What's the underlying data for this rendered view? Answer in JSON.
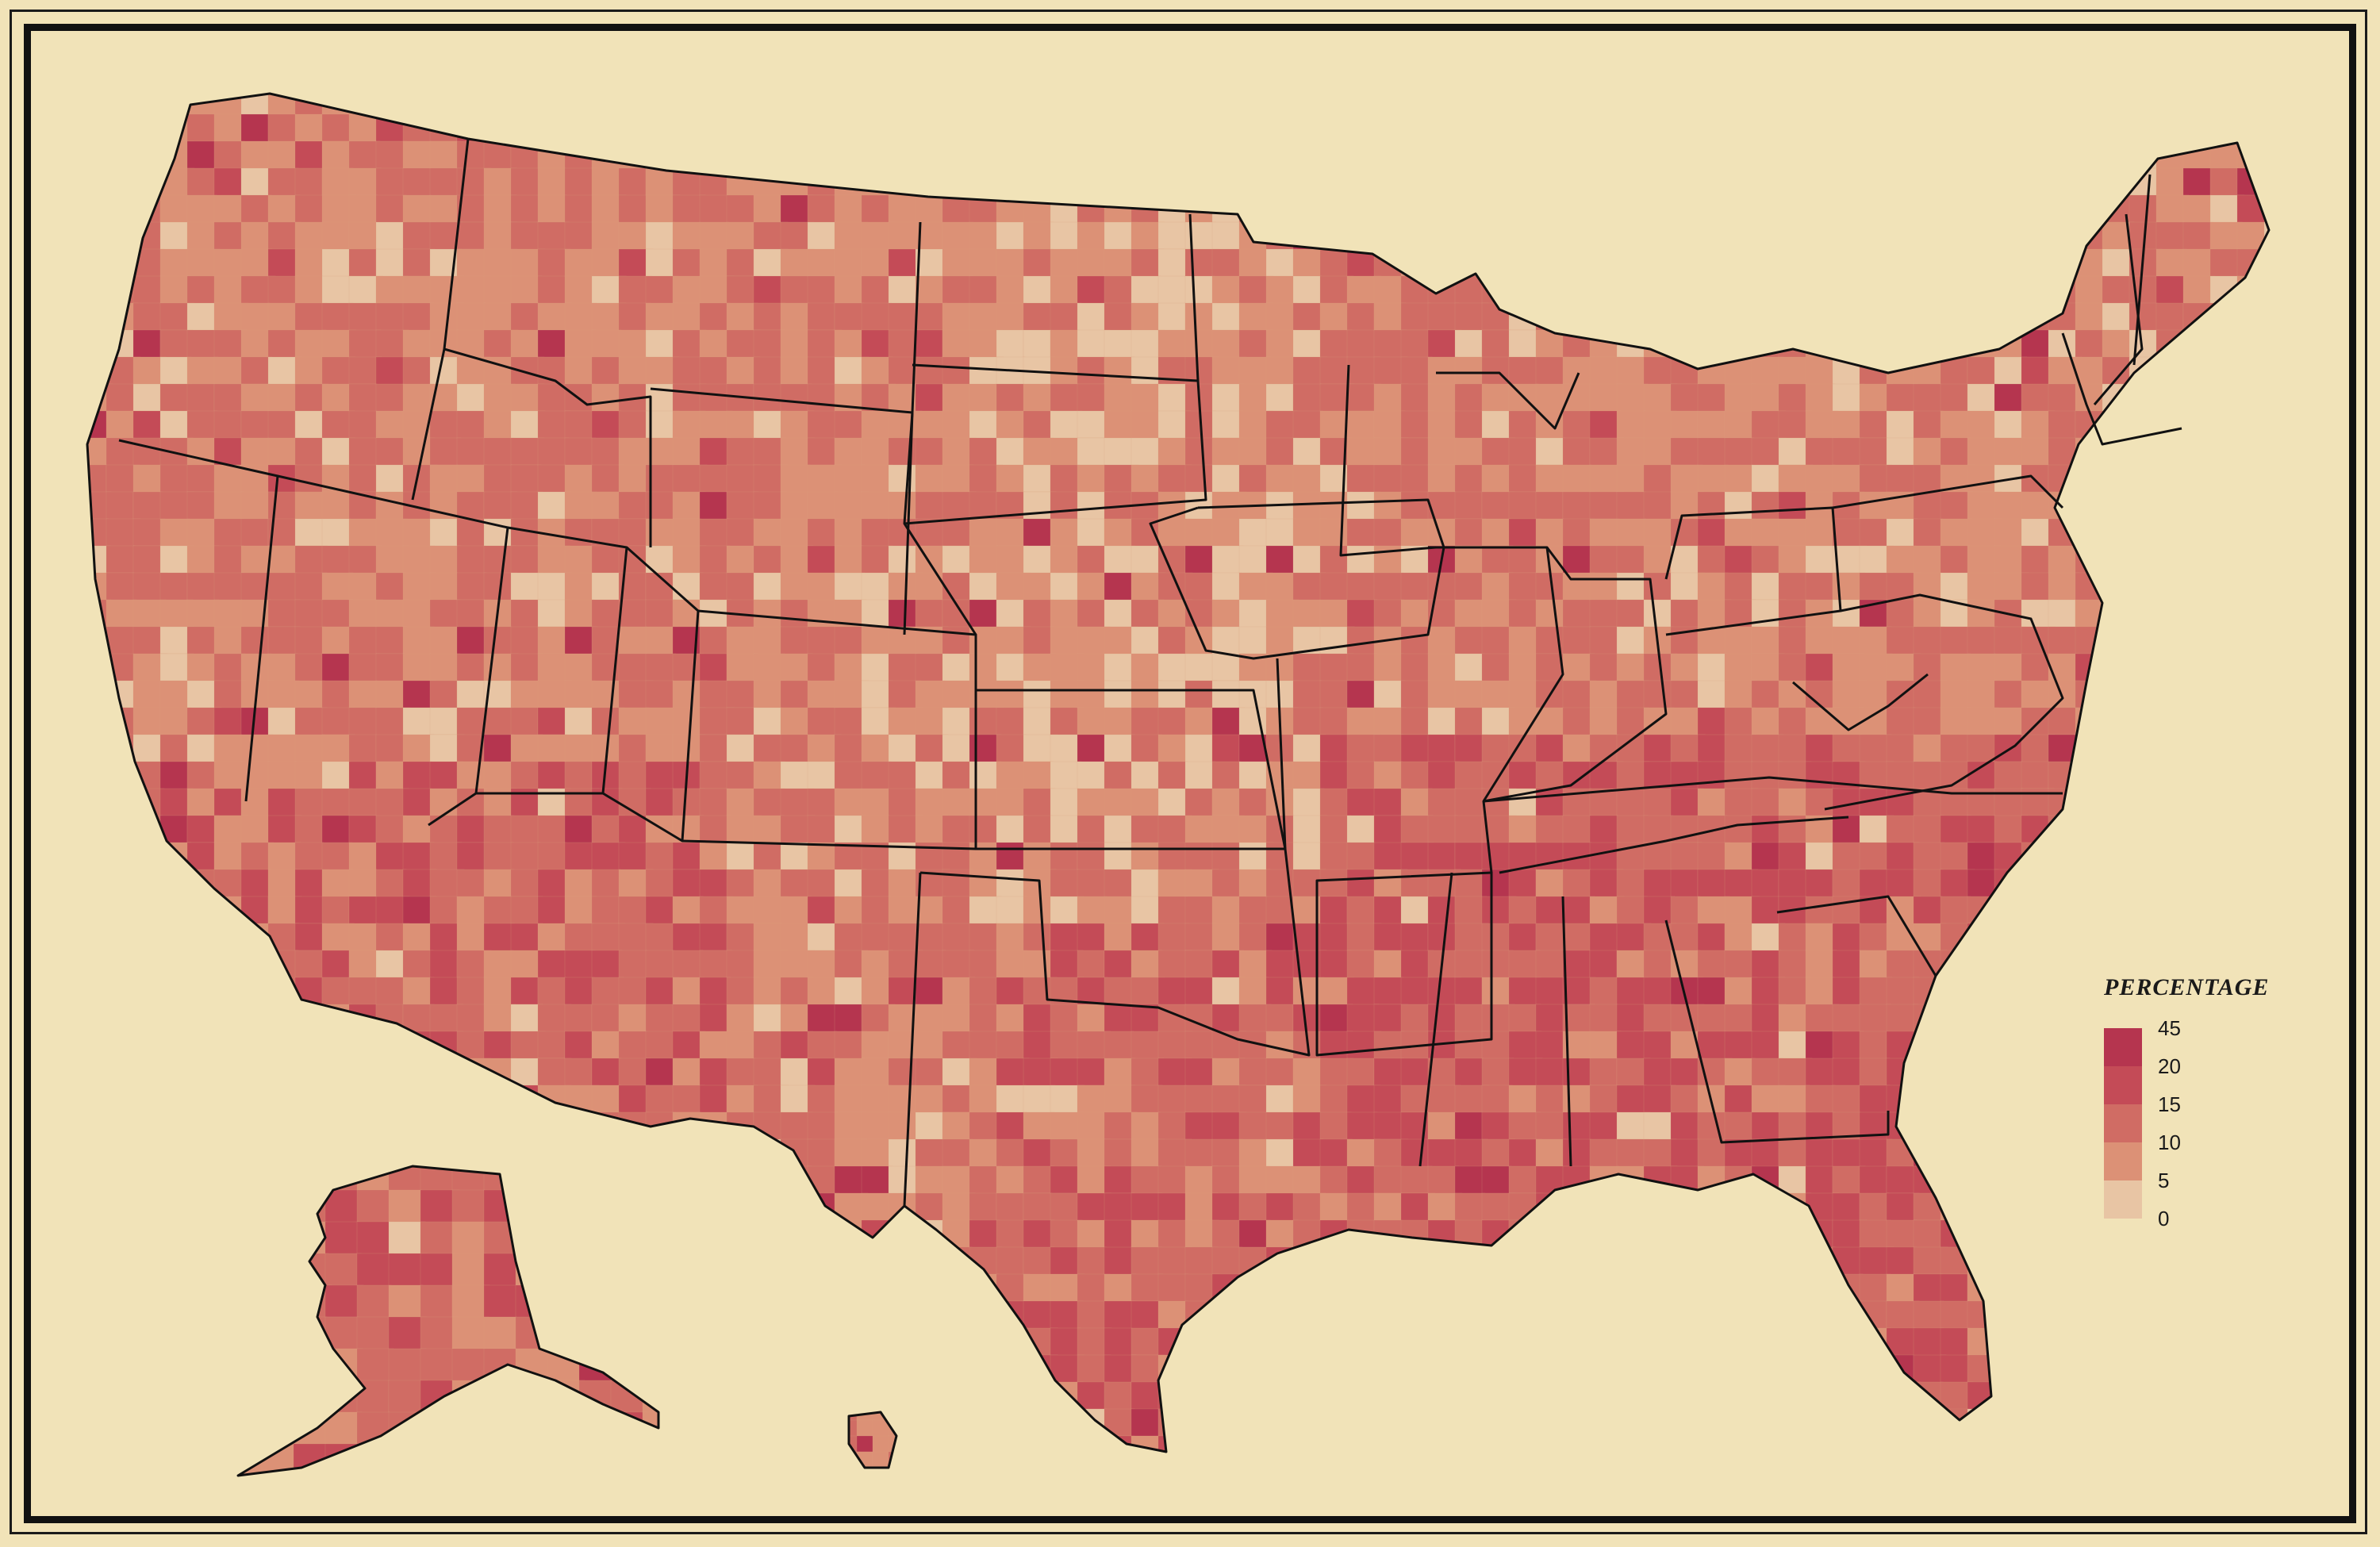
{
  "legend": {
    "title": "PERCENTAGE",
    "ticks": [
      "45",
      "20",
      "15",
      "10",
      "5",
      "0"
    ],
    "bins": [
      {
        "range": "20-45",
        "color": "#b5354f"
      },
      {
        "range": "15-20",
        "color": "#c44b57"
      },
      {
        "range": "10-15",
        "color": "#d06c64"
      },
      {
        "range": "5-10",
        "color": "#dc9176"
      },
      {
        "range": "0-5",
        "color": "#e8c5a4"
      }
    ]
  },
  "colors": {
    "background": "#f1e3b8",
    "border": "#111111",
    "state_line": "#111111"
  }
}
